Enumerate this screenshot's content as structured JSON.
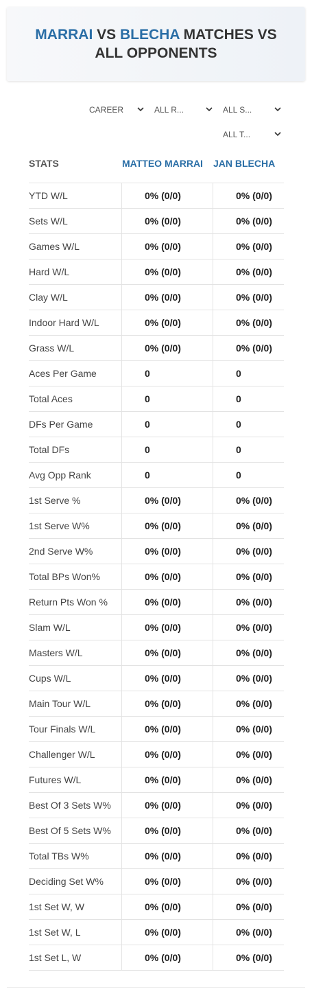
{
  "header": {
    "player1": "MARRAI",
    "vs": "VS",
    "player2": "BLECHA",
    "rest": "MATCHES VS ALL OPPONENTS"
  },
  "filters": [
    "CAREER",
    "ALL R...",
    "ALL S...",
    "ALL T..."
  ],
  "table": {
    "columns": [
      "STATS",
      "MATTEO MARRAI",
      "JAN BLECHA"
    ],
    "rows": [
      [
        "YTD W/L",
        "0% (0/0)",
        "0% (0/0)"
      ],
      [
        "Sets W/L",
        "0% (0/0)",
        "0% (0/0)"
      ],
      [
        "Games W/L",
        "0% (0/0)",
        "0% (0/0)"
      ],
      [
        "Hard W/L",
        "0% (0/0)",
        "0% (0/0)"
      ],
      [
        "Clay W/L",
        "0% (0/0)",
        "0% (0/0)"
      ],
      [
        "Indoor Hard W/L",
        "0% (0/0)",
        "0% (0/0)"
      ],
      [
        "Grass W/L",
        "0% (0/0)",
        "0% (0/0)"
      ],
      [
        "Aces Per Game",
        0,
        0
      ],
      [
        "Total Aces",
        0,
        0
      ],
      [
        "DFs Per Game",
        0,
        0
      ],
      [
        "Total DFs",
        0,
        0
      ],
      [
        "Avg Opp Rank",
        0,
        0
      ],
      [
        "1st Serve %",
        "0% (0/0)",
        "0% (0/0)"
      ],
      [
        "1st Serve W%",
        "0% (0/0)",
        "0% (0/0)"
      ],
      [
        "2nd Serve W%",
        "0% (0/0)",
        "0% (0/0)"
      ],
      [
        "Total BPs Won%",
        "0% (0/0)",
        "0% (0/0)"
      ],
      [
        "Return Pts Won %",
        "0% (0/0)",
        "0% (0/0)"
      ],
      [
        "Slam W/L",
        "0% (0/0)",
        "0% (0/0)"
      ],
      [
        "Masters W/L",
        "0% (0/0)",
        "0% (0/0)"
      ],
      [
        "Cups W/L",
        "0% (0/0)",
        "0% (0/0)"
      ],
      [
        "Main Tour W/L",
        "0% (0/0)",
        "0% (0/0)"
      ],
      [
        "Tour Finals W/L",
        "0% (0/0)",
        "0% (0/0)"
      ],
      [
        "Challenger W/L",
        "0% (0/0)",
        "0% (0/0)"
      ],
      [
        "Futures W/L",
        "0% (0/0)",
        "0% (0/0)"
      ],
      [
        "Best Of 3 Sets W%",
        "0% (0/0)",
        "0% (0/0)"
      ],
      [
        "Best Of 5 Sets W%",
        "0% (0/0)",
        "0% (0/0)"
      ],
      [
        "Total TBs W%",
        "0% (0/0)",
        "0% (0/0)"
      ],
      [
        "Deciding Set W%",
        "0% (0/0)",
        "0% (0/0)"
      ],
      [
        "1st Set W, W",
        "0% (0/0)",
        "0% (0/0)"
      ],
      [
        "1st Set W, L",
        "0% (0/0)",
        "0% (0/0)"
      ],
      [
        "1st Set L, W",
        "0% (0/0)",
        "0% (0/0)"
      ]
    ]
  }
}
